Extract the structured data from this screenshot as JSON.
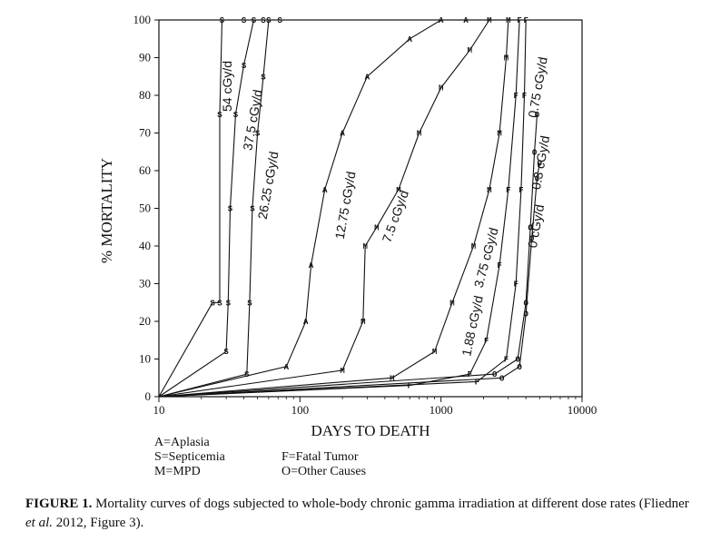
{
  "chart_data": {
    "type": "line",
    "xlabel": "DAYS TO DEATH",
    "ylabel": "% MORTALITY",
    "xscale": "log",
    "xlim": [
      10,
      10000
    ],
    "ylim": [
      0,
      100
    ],
    "x_ticks": [
      "10",
      "100",
      "1000",
      "10000"
    ],
    "y_ticks": [
      "0",
      "10",
      "20",
      "30",
      "40",
      "50",
      "60",
      "70",
      "80",
      "90",
      "100"
    ],
    "grid": false,
    "series": [
      {
        "name": "54 cGy/d",
        "marker": "S",
        "points": [
          [
            10,
            0
          ],
          [
            24,
            25
          ],
          [
            27,
            25
          ],
          [
            27,
            75
          ],
          [
            28,
            100
          ],
          [
            40,
            100
          ]
        ]
      },
      {
        "name": "37.5 cGy/d",
        "marker": "S",
        "points": [
          [
            10,
            0
          ],
          [
            30,
            12
          ],
          [
            31,
            25
          ],
          [
            32,
            50
          ],
          [
            35,
            75
          ],
          [
            40,
            88
          ],
          [
            47,
            100
          ],
          [
            55,
            100
          ]
        ]
      },
      {
        "name": "26.25 cGy/d",
        "marker": "S",
        "points": [
          [
            10,
            0
          ],
          [
            42,
            6
          ],
          [
            44,
            25
          ],
          [
            46,
            50
          ],
          [
            50,
            70
          ],
          [
            55,
            85
          ],
          [
            60,
            100
          ],
          [
            72,
            100
          ]
        ]
      },
      {
        "name": "12.75 cGy/d",
        "marker": "A",
        "points": [
          [
            10,
            0
          ],
          [
            80,
            8
          ],
          [
            110,
            20
          ],
          [
            120,
            35
          ],
          [
            150,
            55
          ],
          [
            200,
            70
          ],
          [
            300,
            85
          ],
          [
            600,
            95
          ],
          [
            1000,
            100
          ],
          [
            1500,
            100
          ]
        ]
      },
      {
        "name": "7.5 cGy/d",
        "marker": "M",
        "points": [
          [
            10,
            0
          ],
          [
            200,
            7
          ],
          [
            280,
            20
          ],
          [
            290,
            40
          ],
          [
            350,
            45
          ],
          [
            500,
            55
          ],
          [
            700,
            70
          ],
          [
            1000,
            82
          ],
          [
            1600,
            92
          ],
          [
            2200,
            100
          ]
        ]
      },
      {
        "name": "3.75 cGy/d",
        "marker": "M",
        "points": [
          [
            10,
            0
          ],
          [
            450,
            5
          ],
          [
            900,
            12
          ],
          [
            1200,
            25
          ],
          [
            1700,
            40
          ],
          [
            2200,
            55
          ],
          [
            2600,
            70
          ],
          [
            2900,
            90
          ],
          [
            3000,
            100
          ]
        ]
      },
      {
        "name": "1.88 cGy/d",
        "marker": "F",
        "points": [
          [
            10,
            0
          ],
          [
            600,
            3
          ],
          [
            1600,
            6
          ],
          [
            2100,
            15
          ],
          [
            2600,
            35
          ],
          [
            3000,
            55
          ],
          [
            3400,
            80
          ],
          [
            3600,
            100
          ]
        ]
      },
      {
        "name": "0.75 cGy/d",
        "marker": "F",
        "points": [
          [
            10,
            0
          ],
          [
            1800,
            4
          ],
          [
            2900,
            10
          ],
          [
            3400,
            30
          ],
          [
            3700,
            55
          ],
          [
            3900,
            80
          ],
          [
            4000,
            100
          ]
        ]
      },
      {
        "name": "0.3 cGy/d",
        "marker": "O",
        "points": [
          [
            10,
            0
          ],
          [
            2400,
            6
          ],
          [
            3500,
            10
          ],
          [
            4000,
            25
          ],
          [
            4300,
            45
          ],
          [
            4600,
            65
          ],
          [
            4800,
            75
          ]
        ]
      },
      {
        "name": "0 cGy/d",
        "marker": "O",
        "points": [
          [
            10,
            0
          ],
          [
            2700,
            5
          ],
          [
            3600,
            8
          ],
          [
            4000,
            22
          ],
          [
            4400,
            42
          ],
          [
            4800,
            58
          ],
          [
            5000,
            62
          ]
        ]
      }
    ]
  },
  "legend": {
    "col1": [
      "A=Aplasia",
      "S=Septicemia",
      "M=MPD"
    ],
    "col2": [
      "F=Fatal Tumor",
      "O=Other Causes"
    ]
  },
  "caption": {
    "label": "FIGURE 1.",
    "text_before": " Mortality curves of dogs subjected to whole-body chronic gamma irradiation at different dose rates (Fliedner ",
    "etal": "et al.",
    "text_after": " 2012, Figure 3)."
  }
}
